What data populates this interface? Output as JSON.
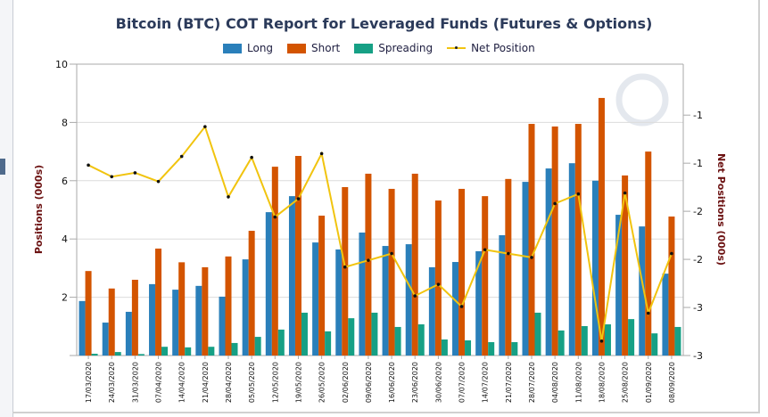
{
  "chart_data": {
    "type": "bar",
    "title": "Bitcoin (BTC) COT Report for Leveraged Funds (Futures & Options)",
    "ylabel": "Positions (000s)",
    "y2label": "Net Positions (000s)",
    "ylim": [
      0,
      10
    ],
    "yticks": [
      "2",
      "4",
      "6",
      "8",
      "10"
    ],
    "y2lim": [
      -3,
      0
    ],
    "y2ticks": [
      {
        "value": -0.5,
        "label": "-1"
      },
      {
        "value": -1.0,
        "label": "-1"
      },
      {
        "value": -1.5,
        "label": "-2"
      },
      {
        "value": -2.0,
        "label": "-2"
      },
      {
        "value": -2.5,
        "label": "-3"
      },
      {
        "value": -3.0,
        "label": "-3"
      }
    ],
    "grid": true,
    "legend_position": "top",
    "categories": [
      "17/03/2020",
      "24/03/2020",
      "31/03/2020",
      "07/04/2020",
      "14/04/2020",
      "21/04/2020",
      "28/04/2020",
      "05/05/2020",
      "12/05/2020",
      "19/05/2020",
      "26/05/2020",
      "02/06/2020",
      "09/06/2020",
      "16/06/2020",
      "23/06/2020",
      "30/06/2020",
      "07/07/2020",
      "14/07/2020",
      "21/07/2020",
      "28/07/2020",
      "04/08/2020",
      "11/08/2020",
      "18/08/2020",
      "25/08/2020",
      "01/09/2020",
      "08/09/2020"
    ],
    "series": [
      {
        "name": "Long",
        "type": "bar",
        "axis": "left",
        "color": "#2a7fba",
        "values": [
          1.87,
          1.13,
          1.5,
          2.45,
          2.26,
          2.39,
          2.02,
          3.3,
          4.92,
          5.47,
          3.88,
          3.64,
          4.22,
          3.76,
          3.82,
          3.03,
          3.21,
          3.58,
          4.13,
          5.96,
          6.42,
          6.6,
          6.0,
          4.83,
          4.43,
          2.81
        ]
      },
      {
        "name": "Short",
        "type": "bar",
        "axis": "left",
        "color": "#d35400",
        "values": [
          2.9,
          2.3,
          2.6,
          3.67,
          3.2,
          3.03,
          3.4,
          4.28,
          6.48,
          6.85,
          4.8,
          5.78,
          6.24,
          5.72,
          6.24,
          5.32,
          5.72,
          5.47,
          6.06,
          7.95,
          7.86,
          7.95,
          8.84,
          6.18,
          7.0,
          4.77
        ]
      },
      {
        "name": "Spreading",
        "type": "bar",
        "axis": "left",
        "color": "#16a085",
        "values": [
          0.06,
          0.12,
          0.05,
          0.3,
          0.28,
          0.3,
          0.43,
          0.64,
          0.89,
          1.47,
          0.83,
          1.28,
          1.47,
          0.98,
          1.07,
          0.55,
          0.52,
          0.46,
          0.46,
          1.47,
          0.86,
          1.01,
          1.07,
          1.25,
          0.76,
          0.98
        ]
      },
      {
        "name": "Net Position",
        "type": "line",
        "axis": "right",
        "color": "#f1c40f",
        "values": [
          -1.02,
          -1.14,
          -1.1,
          -1.19,
          -0.93,
          -0.62,
          -1.35,
          -0.94,
          -1.56,
          -1.37,
          -0.9,
          -2.08,
          -2.01,
          -1.94,
          -2.38,
          -2.26,
          -2.49,
          -1.9,
          -1.94,
          -1.98,
          -1.42,
          -1.32,
          -2.85,
          -1.31,
          -2.56,
          -1.94
        ]
      }
    ]
  }
}
